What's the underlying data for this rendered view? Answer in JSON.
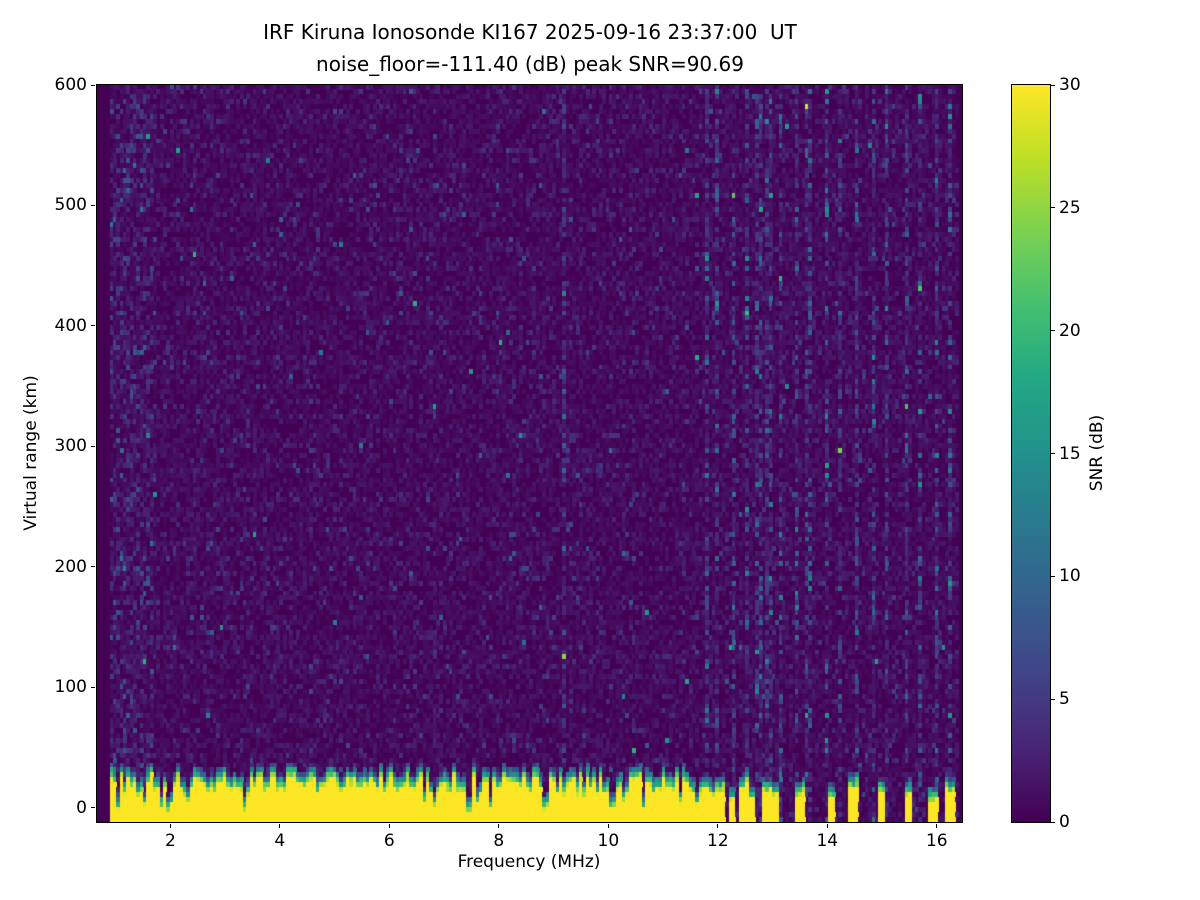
{
  "figure": {
    "title_line1": "IRF Kiruna Ionosonde KI167 2025-09-16 23:37:00  UT",
    "title_line2": "noise_floor=-111.40 (dB) peak SNR=90.69"
  },
  "chart_data": {
    "type": "heatmap",
    "title": "IRF Kiruna Ionosonde KI167 2025-09-16 23:37:00  UT",
    "subtitle": "noise_floor=-111.40 (dB) peak SNR=90.69",
    "station": "KI167",
    "timestamp_ut": "2025-09-16 23:37:00",
    "noise_floor_db": -111.4,
    "peak_snr_db": 90.69,
    "xlabel": "Frequency (MHz)",
    "ylabel": "Virtual range (km)",
    "colorbar_label": "SNR (dB)",
    "x_range_mhz": [
      0.66,
      16.46
    ],
    "y_range_km": [
      -12,
      600
    ],
    "x_ticks": [
      2,
      4,
      6,
      8,
      10,
      12,
      14,
      16
    ],
    "y_ticks": [
      0,
      100,
      200,
      300,
      400,
      500,
      600
    ],
    "colorbar_ticks": [
      0,
      5,
      10,
      15,
      20,
      25,
      30
    ],
    "snr_scale_db": [
      0,
      30
    ],
    "grid": false,
    "legend_position": "colorbar-right",
    "colormap": {
      "name": "viridis",
      "anchors": [
        [
          0.0,
          "#440154"
        ],
        [
          0.1,
          "#482475"
        ],
        [
          0.2,
          "#414487"
        ],
        [
          0.3,
          "#355f8d"
        ],
        [
          0.4,
          "#2a788e"
        ],
        [
          0.5,
          "#21918c"
        ],
        [
          0.6,
          "#22a884"
        ],
        [
          0.7,
          "#44bf70"
        ],
        [
          0.8,
          "#7ad151"
        ],
        [
          0.9,
          "#bddf26"
        ],
        [
          1.0,
          "#fde725"
        ]
      ]
    },
    "content": {
      "summary": "Night-time ionogram with no ionospheric echo trace. Saturated ground-clutter band (SNR ~30 dB, yellow) from the bottom of the plot up to ~15-30 km virtual range spanning 0.9-11.65 MHz, with a ragged green/teal fringe and occasional narrow dark notches. Above 11.65 MHz only sparse narrow yellow stripes remain near 0 km. Faint vertical RFI noise columns between ~11.7 and 16.4 MHz and a weak line near 9.2 MHz. Background is low-level noise speckle of 0-8 dB on a ~0 dB floor.",
      "data_extent_mhz": [
        0.9,
        16.42
      ],
      "noise_mean_db": 1.0,
      "ground_clutter": {
        "freq_range_mhz": [
          0.9,
          11.65
        ],
        "snr_db": 30,
        "top_km_range": [
          14,
          30
        ]
      },
      "faint_line_mhz": 9.2,
      "rfi_columns_mhz": [
        11.8,
        12.0,
        12.3,
        12.55,
        12.75,
        12.95,
        13.15,
        13.45,
        13.65,
        14.0,
        14.25,
        14.55,
        14.85,
        15.1,
        15.45,
        15.7,
        16.0,
        16.25
      ],
      "bottom_stripes": [
        {
          "freq_mhz": 11.75,
          "width_mhz": 0.07,
          "top_km": 18
        },
        {
          "freq_mhz": 11.9,
          "width_mhz": 0.06,
          "top_km": 14
        },
        {
          "freq_mhz": 12.05,
          "width_mhz": 0.1,
          "top_km": 20
        },
        {
          "freq_mhz": 12.25,
          "width_mhz": 0.06,
          "top_km": 12
        },
        {
          "freq_mhz": 12.5,
          "width_mhz": 0.12,
          "top_km": 22
        },
        {
          "freq_mhz": 12.65,
          "width_mhz": 0.06,
          "top_km": 10
        },
        {
          "freq_mhz": 12.9,
          "width_mhz": 0.1,
          "top_km": 18
        },
        {
          "freq_mhz": 13.05,
          "width_mhz": 0.06,
          "top_km": 14
        },
        {
          "freq_mhz": 13.5,
          "width_mhz": 0.1,
          "top_km": 16
        },
        {
          "freq_mhz": 14.1,
          "width_mhz": 0.08,
          "top_km": 14
        },
        {
          "freq_mhz": 14.5,
          "width_mhz": 0.14,
          "top_km": 20
        },
        {
          "freq_mhz": 15.0,
          "width_mhz": 0.1,
          "top_km": 16
        },
        {
          "freq_mhz": 15.5,
          "width_mhz": 0.1,
          "top_km": 14
        },
        {
          "freq_mhz": 15.95,
          "width_mhz": 0.08,
          "top_km": 12
        },
        {
          "freq_mhz": 16.25,
          "width_mhz": 0.1,
          "top_km": 18
        }
      ],
      "seed": 167
    }
  }
}
